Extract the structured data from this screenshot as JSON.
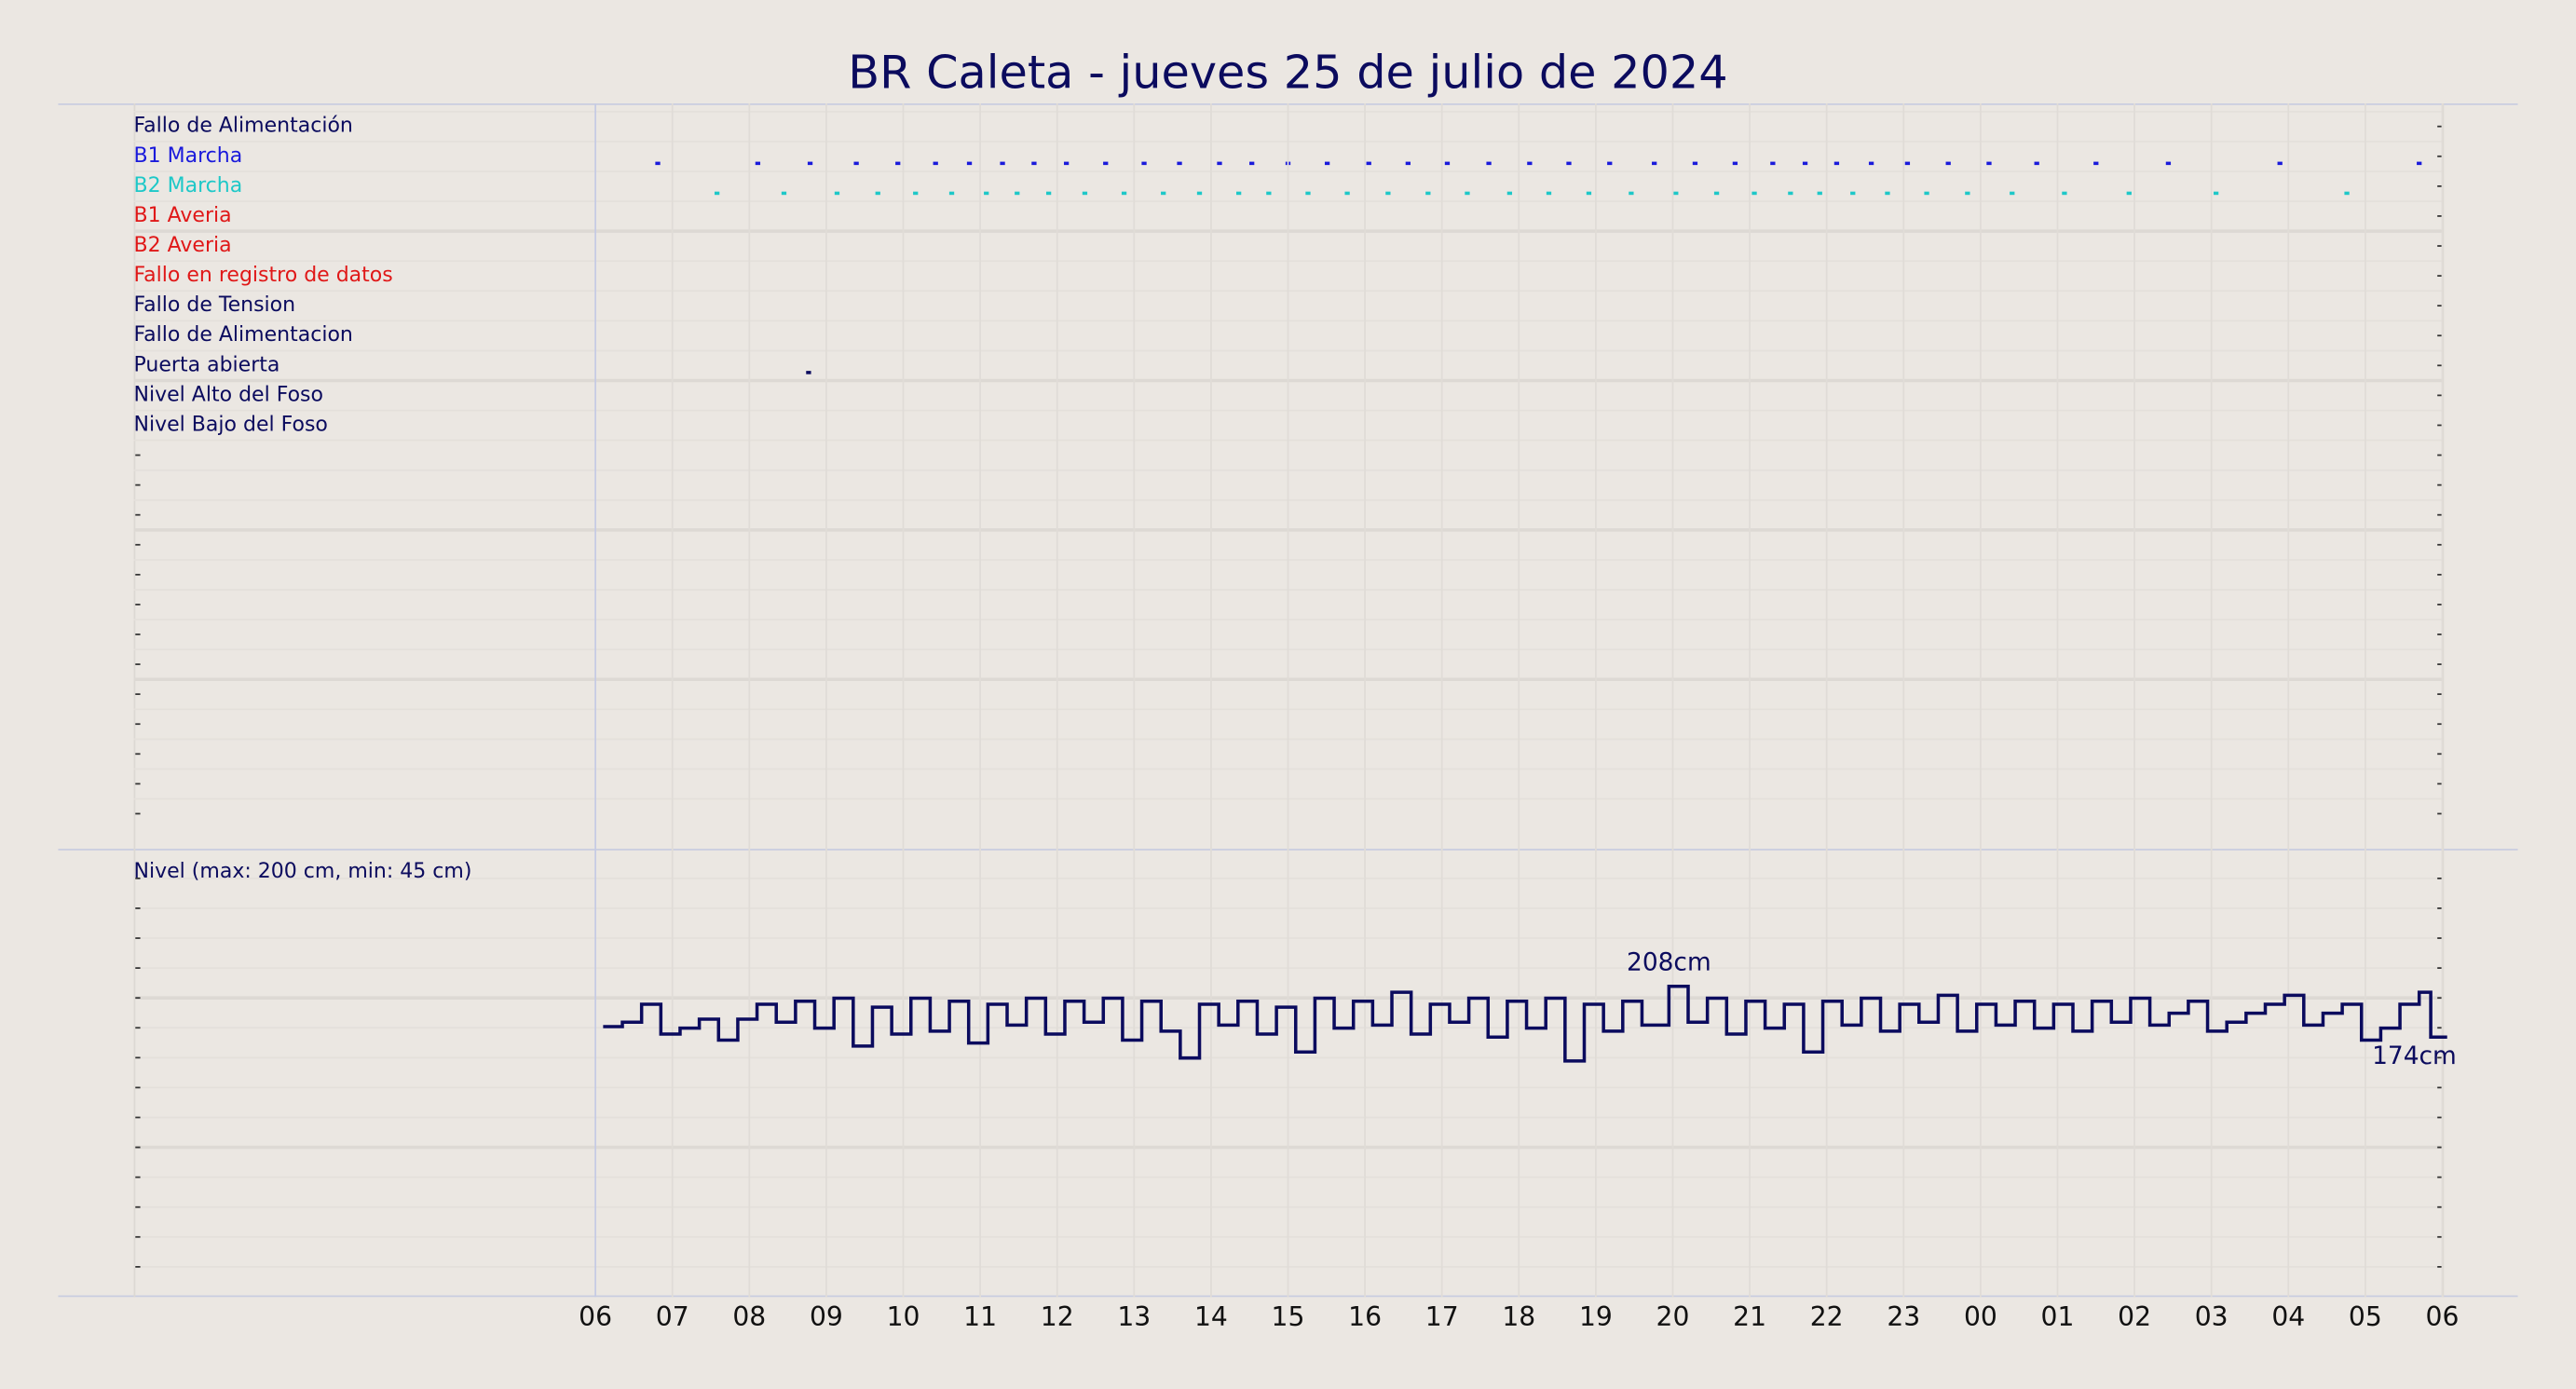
{
  "chart_data": [
    {
      "type": "timeline",
      "title": "BR Caleta   -   jueves 25 de julio de 2024",
      "xlim": [
        -6,
        24
      ],
      "rows": [
        {
          "name": "Fallo de Alimentación",
          "color": "#0b0b5e",
          "events": []
        },
        {
          "name": "B1 Marcha",
          "color": "#1a1adb",
          "events": [
            0.81,
            2.11,
            2.79,
            3.39,
            3.93,
            4.42,
            4.86,
            5.29,
            5.7,
            6.12,
            6.63,
            7.13,
            7.59,
            8.11,
            8.53,
            9.0,
            9.51,
            10.05,
            10.56,
            11.07,
            11.61,
            12.14,
            12.65,
            13.18,
            13.76,
            14.29,
            14.81,
            15.3,
            15.72,
            16.13,
            16.58,
            17.05,
            17.58,
            18.11,
            18.73,
            19.5,
            20.44,
            21.89,
            23.7
          ]
        },
        {
          "name": "B2 Marcha",
          "color": "#1ec8c8",
          "events": [
            1.58,
            2.45,
            3.14,
            3.67,
            4.16,
            4.63,
            5.08,
            5.48,
            5.89,
            6.36,
            6.87,
            7.38,
            7.85,
            8.36,
            8.75,
            9.26,
            9.77,
            10.3,
            10.82,
            11.33,
            11.88,
            12.39,
            12.91,
            13.46,
            14.04,
            14.57,
            15.06,
            15.53,
            15.91,
            16.34,
            16.79,
            17.3,
            17.83,
            18.41,
            19.09,
            19.93,
            21.06,
            22.76
          ]
        },
        {
          "name": "B1 Averia",
          "color": "#e01818",
          "events": []
        },
        {
          "name": "B2 Averia",
          "color": "#e01818",
          "events": []
        },
        {
          "name": "Fallo en registro de datos",
          "color": "#e01818",
          "events": []
        },
        {
          "name": "Fallo de Tension",
          "color": "#0b0b5e",
          "events": []
        },
        {
          "name": "Fallo de Alimentacion",
          "color": "#0b0b5e",
          "events": []
        },
        {
          "name": "Puerta abierta",
          "color": "#0b0b5e",
          "events": [
            2.77
          ]
        },
        {
          "name": "Nivel Alto del Foso",
          "color": "#0b0b5e",
          "events": []
        },
        {
          "name": "Nivel Bajo del Foso",
          "color": "#0b0b5e",
          "events": []
        }
      ]
    },
    {
      "type": "line",
      "label": "Nivel (max: 200 cm, min: 45 cm)",
      "color": "#0b0b5e",
      "xlim": [
        -6,
        24
      ],
      "ylim": [
        0,
        300
      ],
      "xticks": [
        {
          "value": 0,
          "label": "06"
        },
        {
          "value": 1,
          "label": "07"
        },
        {
          "value": 2,
          "label": "08"
        },
        {
          "value": 3,
          "label": "09"
        },
        {
          "value": 4,
          "label": "10"
        },
        {
          "value": 5,
          "label": "11"
        },
        {
          "value": 6,
          "label": "12"
        },
        {
          "value": 7,
          "label": "13"
        },
        {
          "value": 8,
          "label": "14"
        },
        {
          "value": 9,
          "label": "15"
        },
        {
          "value": 10,
          "label": "16"
        },
        {
          "value": 11,
          "label": "17"
        },
        {
          "value": 12,
          "label": "18"
        },
        {
          "value": 13,
          "label": "19"
        },
        {
          "value": 14,
          "label": "20"
        },
        {
          "value": 15,
          "label": "21"
        },
        {
          "value": 16,
          "label": "22"
        },
        {
          "value": 17,
          "label": "23"
        },
        {
          "value": 18,
          "label": "00"
        },
        {
          "value": 19,
          "label": "01"
        },
        {
          "value": 20,
          "label": "02"
        },
        {
          "value": 21,
          "label": "03"
        },
        {
          "value": 22,
          "label": "04"
        },
        {
          "value": 23,
          "label": "05"
        },
        {
          "value": 24,
          "label": "06"
        }
      ],
      "x": [
        0.1,
        0.35,
        0.6,
        0.85,
        1.1,
        1.35,
        1.6,
        1.85,
        2.1,
        2.35,
        2.6,
        2.85,
        3.1,
        3.35,
        3.6,
        3.85,
        4.1,
        4.35,
        4.6,
        4.85,
        5.1,
        5.35,
        5.6,
        5.85,
        6.1,
        6.35,
        6.6,
        6.85,
        7.1,
        7.35,
        7.6,
        7.85,
        8.1,
        8.35,
        8.6,
        8.85,
        9.1,
        9.35,
        9.6,
        9.85,
        10.1,
        10.35,
        10.6,
        10.85,
        11.1,
        11.35,
        11.6,
        11.85,
        12.1,
        12.35,
        12.6,
        12.85,
        13.1,
        13.35,
        13.6,
        13.95,
        14.2,
        14.45,
        14.7,
        14.95,
        15.2,
        15.45,
        15.7,
        15.95,
        16.2,
        16.45,
        16.7,
        16.95,
        17.2,
        17.45,
        17.7,
        17.95,
        18.2,
        18.45,
        18.7,
        18.95,
        19.2,
        19.45,
        19.7,
        19.95,
        20.2,
        20.45,
        20.7,
        20.95,
        21.2,
        21.45,
        21.7,
        21.95,
        22.2,
        22.45,
        22.7,
        22.95,
        23.2,
        23.45,
        23.7,
        23.85
      ],
      "values": [
        181,
        184,
        196,
        176,
        180,
        186,
        172,
        186,
        196,
        184,
        198,
        180,
        200,
        168,
        194,
        176,
        200,
        178,
        198,
        170,
        196,
        182,
        200,
        176,
        198,
        184,
        200,
        172,
        198,
        178,
        160,
        196,
        182,
        198,
        176,
        194,
        164,
        200,
        180,
        198,
        182,
        204,
        176,
        196,
        184,
        200,
        174,
        198,
        180,
        200,
        158,
        196,
        178,
        198,
        182,
        208,
        184,
        200,
        176,
        198,
        180,
        196,
        164,
        198,
        182,
        200,
        178,
        196,
        184,
        202,
        178,
        196,
        182,
        198,
        180,
        196,
        178,
        198,
        184,
        200,
        182,
        190,
        198,
        178,
        184,
        190,
        196,
        202,
        182,
        190,
        196,
        172,
        180,
        196,
        204,
        174
      ],
      "value_labels": [
        null,
        null,
        null,
        null,
        null,
        null,
        null,
        null,
        null,
        null,
        null,
        null,
        null,
        null,
        null,
        null,
        null,
        null,
        null,
        null,
        null,
        null,
        null,
        null,
        null,
        null,
        null,
        null,
        null,
        null,
        null,
        null,
        null,
        null,
        null,
        null,
        null,
        null,
        null,
        null,
        null,
        null,
        null,
        null,
        null,
        null,
        null,
        null,
        null,
        null,
        null,
        null,
        null,
        null,
        null,
        "208cm",
        null,
        null,
        null,
        null,
        null,
        null,
        null,
        null,
        null,
        null,
        null,
        null,
        null,
        null,
        null,
        null,
        null,
        null,
        null,
        null,
        null,
        null,
        null,
        null,
        null,
        null,
        null,
        null,
        null,
        null,
        null,
        null,
        null,
        null,
        null,
        null,
        null,
        null,
        null,
        "174cm"
      ]
    }
  ]
}
